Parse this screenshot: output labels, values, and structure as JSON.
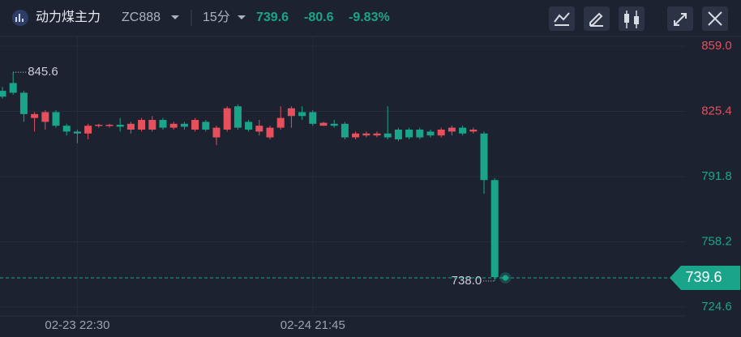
{
  "header": {
    "name": "动力煤主力",
    "code": "ZC888",
    "period": "15分"
  },
  "chart_data": {
    "type": "candlestick",
    "last_price": 739.6,
    "change": -80.6,
    "change_pct": {
      "value": -9.83,
      "label": "-9.83%"
    },
    "up_color": "#e5505c",
    "down_color": "#1aa58a",
    "categories": [
      null,
      null,
      null,
      null,
      null,
      null,
      null,
      "02-23 22:30",
      null,
      null,
      null,
      null,
      null,
      null,
      null,
      null,
      null,
      null,
      null,
      null,
      null,
      null,
      null,
      null,
      null,
      null,
      null,
      null,
      null,
      "02-24 21:45",
      null,
      null,
      null,
      null,
      null,
      null,
      null,
      null,
      null,
      null,
      null,
      null,
      null,
      null,
      null,
      null,
      null,
      null
    ],
    "open": [
      836,
      840,
      835,
      822,
      820,
      825,
      818,
      815,
      814,
      818,
      818,
      818.5,
      816,
      816,
      816,
      821,
      817,
      819,
      816,
      820,
      812,
      816,
      828,
      820,
      815,
      812,
      817,
      823,
      825,
      825,
      818,
      819,
      819,
      812,
      813,
      813,
      814,
      816,
      816,
      816,
      815,
      813,
      815,
      817,
      815,
      814,
      790,
      740
    ],
    "close": [
      833,
      835,
      824,
      824,
      825,
      818,
      815,
      814,
      818,
      818.5,
      818.5,
      817.5,
      819,
      821,
      821,
      817,
      819,
      817.5,
      821,
      816,
      817,
      827,
      817,
      816,
      818,
      817,
      822,
      827,
      823,
      819,
      819.5,
      818,
      812,
      814,
      814,
      814,
      812,
      811,
      812,
      812,
      813,
      816,
      817,
      814,
      816,
      790,
      740,
      739.6
    ],
    "high": [
      838,
      845.6,
      836,
      825,
      826,
      826,
      819,
      816,
      819,
      819,
      819,
      822,
      820,
      822,
      823,
      822,
      820,
      820,
      822,
      821,
      818,
      828,
      829,
      821,
      821,
      818,
      828,
      828,
      828,
      826,
      820,
      821,
      820,
      815,
      815,
      815,
      828,
      817,
      817,
      817,
      816,
      817,
      818,
      818,
      817,
      815,
      791,
      741
    ],
    "low": [
      832,
      834,
      820,
      815,
      816,
      817,
      813,
      809,
      811,
      817,
      817,
      815,
      814,
      815,
      815,
      816,
      816,
      816,
      815,
      815,
      808,
      815,
      816,
      815,
      813,
      811,
      816,
      817,
      821,
      818,
      818,
      817,
      811,
      811,
      812,
      812,
      811,
      810,
      811,
      811,
      812,
      812,
      813,
      813,
      814,
      783,
      738.0,
      739
    ],
    "high_label": 845.6,
    "low_label": {
      "value": 738,
      "label": "738.0"
    },
    "ylim": [
      720,
      864
    ],
    "yticks": [
      {
        "value": 859,
        "label": "859.0"
      },
      825.4,
      791.8,
      758.2,
      724.6
    ],
    "grid": true
  }
}
